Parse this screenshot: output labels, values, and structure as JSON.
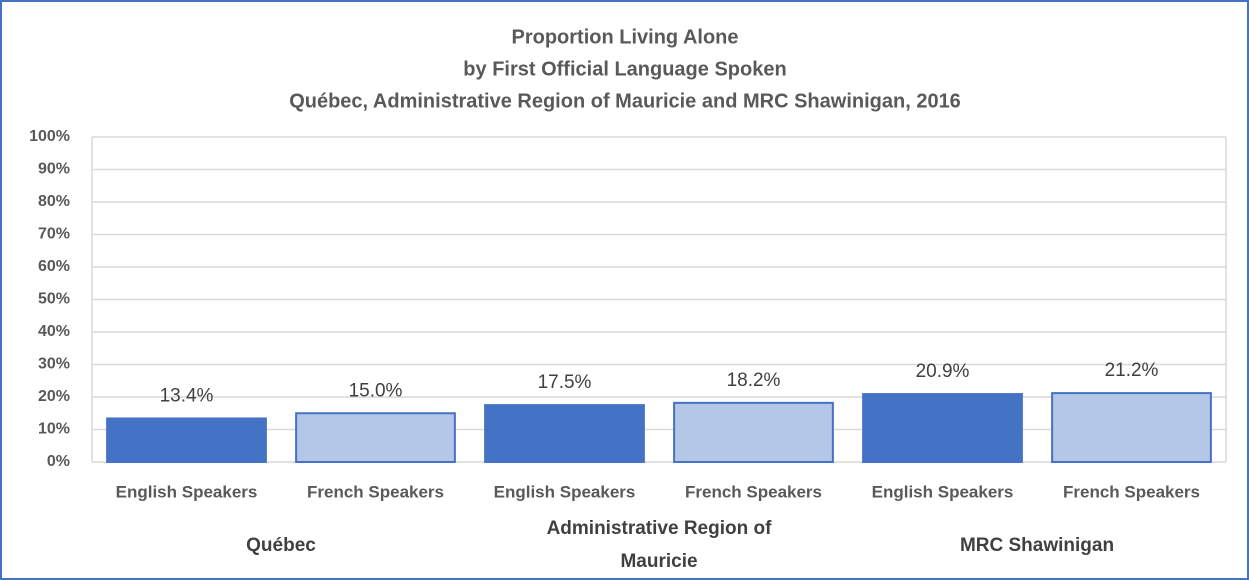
{
  "chart_data": {
    "type": "bar",
    "title": [
      "Proportion Living Alone",
      "by First Official Language Spoken",
      "Québec, Administrative Region of Mauricie and MRC Shawinigan, 2016"
    ],
    "categories": [
      "English Speakers",
      "French Speakers",
      "English Speakers",
      "French Speakers",
      "English Speakers",
      "French Speakers"
    ],
    "groups": [
      "Québec",
      "Administrative Region of Mauricie",
      "MRC Shawinigan"
    ],
    "values": [
      13.4,
      15.0,
      17.5,
      18.2,
      20.9,
      21.2
    ],
    "value_labels": [
      "13.4%",
      "15.0%",
      "17.5%",
      "18.2%",
      "20.9%",
      "21.2%"
    ],
    "colors": [
      "#4472c4",
      "#b4c7e7",
      "#4472c4",
      "#b4c7e7",
      "#4472c4",
      "#b4c7e7"
    ],
    "ylim": [
      0,
      100
    ],
    "yticks": [
      {
        "value": 0,
        "label": "0%"
      },
      {
        "value": 10,
        "label": "10%"
      },
      {
        "value": 20,
        "label": "20%"
      },
      {
        "value": 30,
        "label": "30%"
      },
      {
        "value": 40,
        "label": "40%"
      },
      {
        "value": 50,
        "label": "50%"
      },
      {
        "value": 60,
        "label": "60%"
      },
      {
        "value": 70,
        "label": "70%"
      },
      {
        "value": 80,
        "label": "80%"
      },
      {
        "value": 90,
        "label": "90%"
      },
      {
        "value": 100,
        "label": "100%"
      }
    ],
    "grid": true
  }
}
